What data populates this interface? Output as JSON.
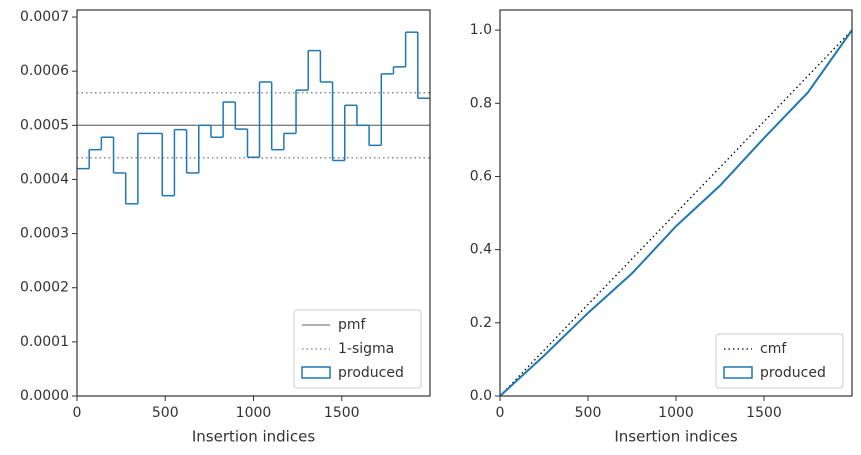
{
  "chart_data": [
    {
      "type": "histogram",
      "xlabel": "Insertion indices",
      "bins": [
        0,
        69,
        138,
        207,
        276,
        345,
        414,
        483,
        552,
        621,
        690,
        759,
        828,
        897,
        966,
        1034,
        1103,
        1172,
        1241,
        1310,
        1379,
        1448,
        1517,
        1586,
        1655,
        1724,
        1793,
        1862,
        1931,
        2000
      ],
      "series": [
        {
          "name": "produced",
          "color": "#1f77b4",
          "values": [
            0.00042,
            0.000455,
            0.000478,
            0.000412,
            0.000355,
            0.000485,
            0.000485,
            0.00037,
            0.000492,
            0.000412,
            0.0005,
            0.000478,
            0.000543,
            0.000493,
            0.000441,
            0.00058,
            0.000455,
            0.000485,
            0.000565,
            0.000638,
            0.00058,
            0.000435,
            0.000537,
            0.0005,
            0.000463,
            0.000595,
            0.000608,
            0.000672,
            0.00055
          ]
        }
      ],
      "hlines": [
        {
          "name": "pmf",
          "color": "#808080",
          "style": "solid",
          "values": [
            0.0005
          ]
        },
        {
          "name": "1-sigma",
          "color": "#808080",
          "style": "dotted",
          "values": [
            0.00044,
            0.00056
          ]
        }
      ],
      "xlim": [
        0,
        2000
      ],
      "xticks": [
        0,
        500,
        1000,
        1500
      ],
      "ylim": [
        0,
        0.000713
      ],
      "yticks": [
        {
          "value": 0,
          "label": "0.0000"
        },
        {
          "value": 0.0001,
          "label": "0.0001"
        },
        {
          "value": 0.0002,
          "label": "0.0002"
        },
        {
          "value": 0.0003,
          "label": "0.0003"
        },
        {
          "value": 0.0004,
          "label": "0.0004"
        },
        {
          "value": 0.0005,
          "label": "0.0005"
        },
        {
          "value": 0.0006,
          "label": "0.0006"
        },
        {
          "value": 0.0007,
          "label": "0.0007"
        }
      ],
      "legend": "lower right"
    },
    {
      "type": "line",
      "xlabel": "Insertion indices",
      "series": [
        {
          "name": "cmf",
          "color": "#000000",
          "style": "dotted",
          "x": [
            0,
            2000
          ],
          "values": [
            0,
            1
          ]
        },
        {
          "name": "produced",
          "color": "#1f77b4",
          "style": "patch",
          "x": [
            0,
            250,
            500,
            750,
            1000,
            1250,
            1500,
            1750,
            2000
          ],
          "values": [
            0,
            0.11,
            0.227,
            0.335,
            0.464,
            0.575,
            0.705,
            0.83,
            1
          ]
        }
      ],
      "xlim": [
        0,
        2000
      ],
      "xticks": [
        0,
        500,
        1000,
        1500
      ],
      "ylim": [
        0,
        1.055
      ],
      "yticks": [
        {
          "value": 0,
          "label": "0.0"
        },
        {
          "value": 0.2,
          "label": "0.2"
        },
        {
          "value": 0.4,
          "label": "0.4"
        },
        {
          "value": 0.6,
          "label": "0.6"
        },
        {
          "value": 0.8,
          "label": "0.8"
        },
        {
          "value": 1,
          "label": "1.0"
        }
      ],
      "legend": "lower right"
    }
  ]
}
